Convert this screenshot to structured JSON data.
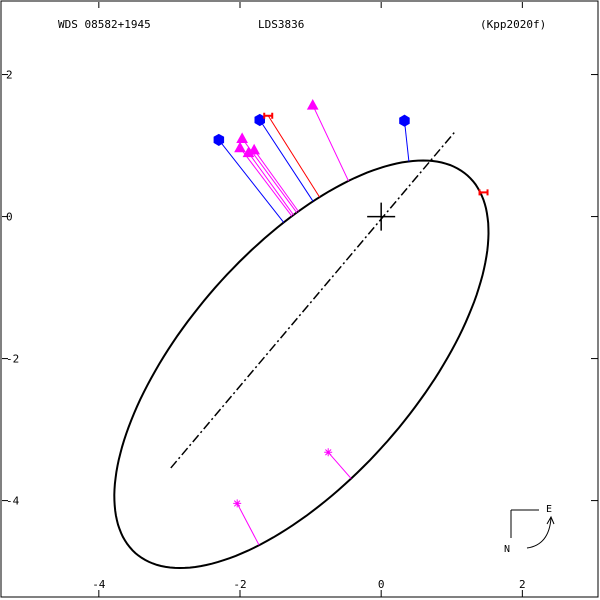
{
  "header": {
    "left": "WDS 08582+1945",
    "center": "LDS3836",
    "right": "(Kpp2020f)"
  },
  "compass": {
    "east": "E",
    "north": "N"
  },
  "colors": {
    "frame": "#000000",
    "orbit": "#000000",
    "hipparcos": "#0000ff",
    "micrometer": "#ff00ff",
    "speckle": "#ff0000",
    "residual_line": "#0000ff"
  },
  "chart_data": {
    "type": "scatter",
    "title": "",
    "xlabel": "",
    "ylabel": "",
    "xlim": [
      -5.4,
      3.1
    ],
    "ylim": [
      -5.4,
      3.05
    ],
    "x_ticks": [
      -4,
      -2,
      0,
      2
    ],
    "y_ticks": [
      2,
      0,
      -2,
      -4
    ],
    "grid": false,
    "orbit_ellipse": {
      "center": [
        -1.13,
        -2.08
      ],
      "semi_major": 3.55,
      "semi_minor": 1.63,
      "angle_deg": 48.5
    },
    "line_of_nodes": [
      [
        -2.98,
        -3.54
      ],
      [
        1.05,
        1.2
      ]
    ],
    "primary": [
      0,
      0
    ],
    "series": [
      {
        "marker": "hexagon",
        "color": "#0000ff",
        "points": [
          [
            -2.3,
            1.08
          ],
          [
            -1.72,
            1.36
          ],
          [
            0.33,
            1.35
          ]
        ]
      },
      {
        "marker": "triangle",
        "color": "#ff00ff",
        "points": [
          [
            -0.97,
            1.57
          ],
          [
            -1.97,
            1.1
          ],
          [
            -1.8,
            0.94
          ],
          [
            -1.88,
            0.9
          ],
          [
            -2.0,
            0.97
          ]
        ]
      },
      {
        "marker": "asterisk",
        "color": "#ff00ff",
        "points": [
          [
            -2.04,
            -4.04
          ],
          [
            -0.75,
            -3.32
          ]
        ]
      },
      {
        "marker": "bar",
        "color": "#ff0000",
        "points": [
          [
            -1.6,
            1.42
          ],
          [
            1.45,
            0.34
          ]
        ]
      }
    ]
  }
}
